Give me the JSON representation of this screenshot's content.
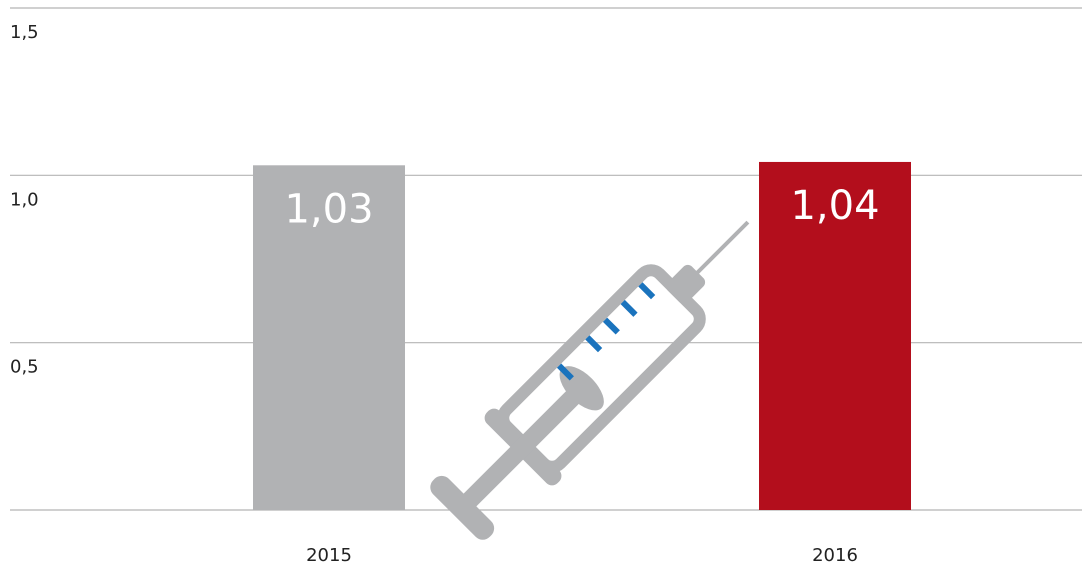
{
  "chart_data": {
    "type": "bar",
    "categories": [
      "2015",
      "2016"
    ],
    "values": [
      1.03,
      1.04
    ],
    "value_labels": [
      "1,03",
      "1,04"
    ],
    "colors": [
      "#b1b2b4",
      "#b30e1c"
    ],
    "ylim": [
      0,
      1.5
    ],
    "yticks": [
      {
        "value": 0.5,
        "label": "0,5"
      },
      {
        "value": 1.0,
        "label": "1,0"
      },
      {
        "value": 1.5,
        "label": "1,5"
      }
    ],
    "grid": true
  }
}
